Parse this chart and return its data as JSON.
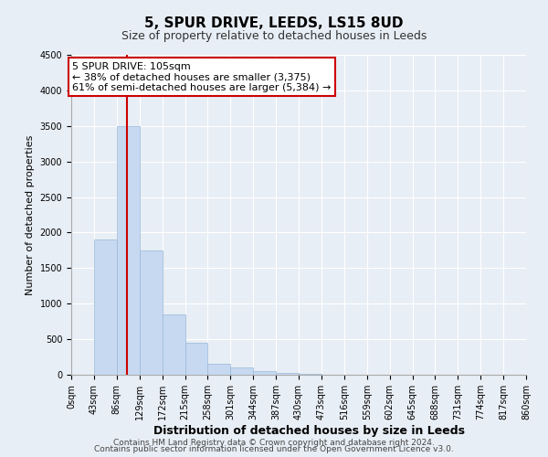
{
  "title": "5, SPUR DRIVE, LEEDS, LS15 8UD",
  "subtitle": "Size of property relative to detached houses in Leeds",
  "xlabel": "Distribution of detached houses by size in Leeds",
  "ylabel": "Number of detached properties",
  "bin_edges": [
    0,
    43,
    86,
    129,
    172,
    215,
    258,
    301,
    344,
    387,
    430,
    473,
    516,
    559,
    602,
    645,
    688,
    731,
    774,
    817,
    860
  ],
  "bar_heights": [
    0,
    1900,
    3500,
    1750,
    850,
    450,
    150,
    100,
    50,
    20,
    10,
    0,
    0,
    0,
    0,
    0,
    0,
    0,
    0,
    0
  ],
  "bar_color": "#c6d9f1",
  "bar_edge_color": "#9ab8d8",
  "property_size": 105,
  "annotation_line1": "5 SPUR DRIVE: 105sqm",
  "annotation_line2": "← 38% of detached houses are smaller (3,375)",
  "annotation_line3": "61% of semi-detached houses are larger (5,384) →",
  "annotation_box_facecolor": "#ffffff",
  "annotation_box_edgecolor": "#cc0000",
  "vertical_line_color": "#cc0000",
  "ylim": [
    0,
    4500
  ],
  "yticks": [
    0,
    500,
    1000,
    1500,
    2000,
    2500,
    3000,
    3500,
    4000,
    4500
  ],
  "tick_labels": [
    "0sqm",
    "43sqm",
    "86sqm",
    "129sqm",
    "172sqm",
    "215sqm",
    "258sqm",
    "301sqm",
    "344sqm",
    "387sqm",
    "430sqm",
    "473sqm",
    "516sqm",
    "559sqm",
    "602sqm",
    "645sqm",
    "688sqm",
    "731sqm",
    "774sqm",
    "817sqm",
    "860sqm"
  ],
  "footnote1": "Contains HM Land Registry data © Crown copyright and database right 2024.",
  "footnote2": "Contains public sector information licensed under the Open Government Licence v3.0.",
  "background_color": "#e8eef5",
  "plot_bg_color": "#e8eef5",
  "grid_color": "#ffffff",
  "title_fontsize": 11,
  "subtitle_fontsize": 9,
  "ylabel_fontsize": 8,
  "xlabel_fontsize": 9,
  "tick_fontsize": 7,
  "annotation_fontsize": 8,
  "footnote_fontsize": 6.5
}
